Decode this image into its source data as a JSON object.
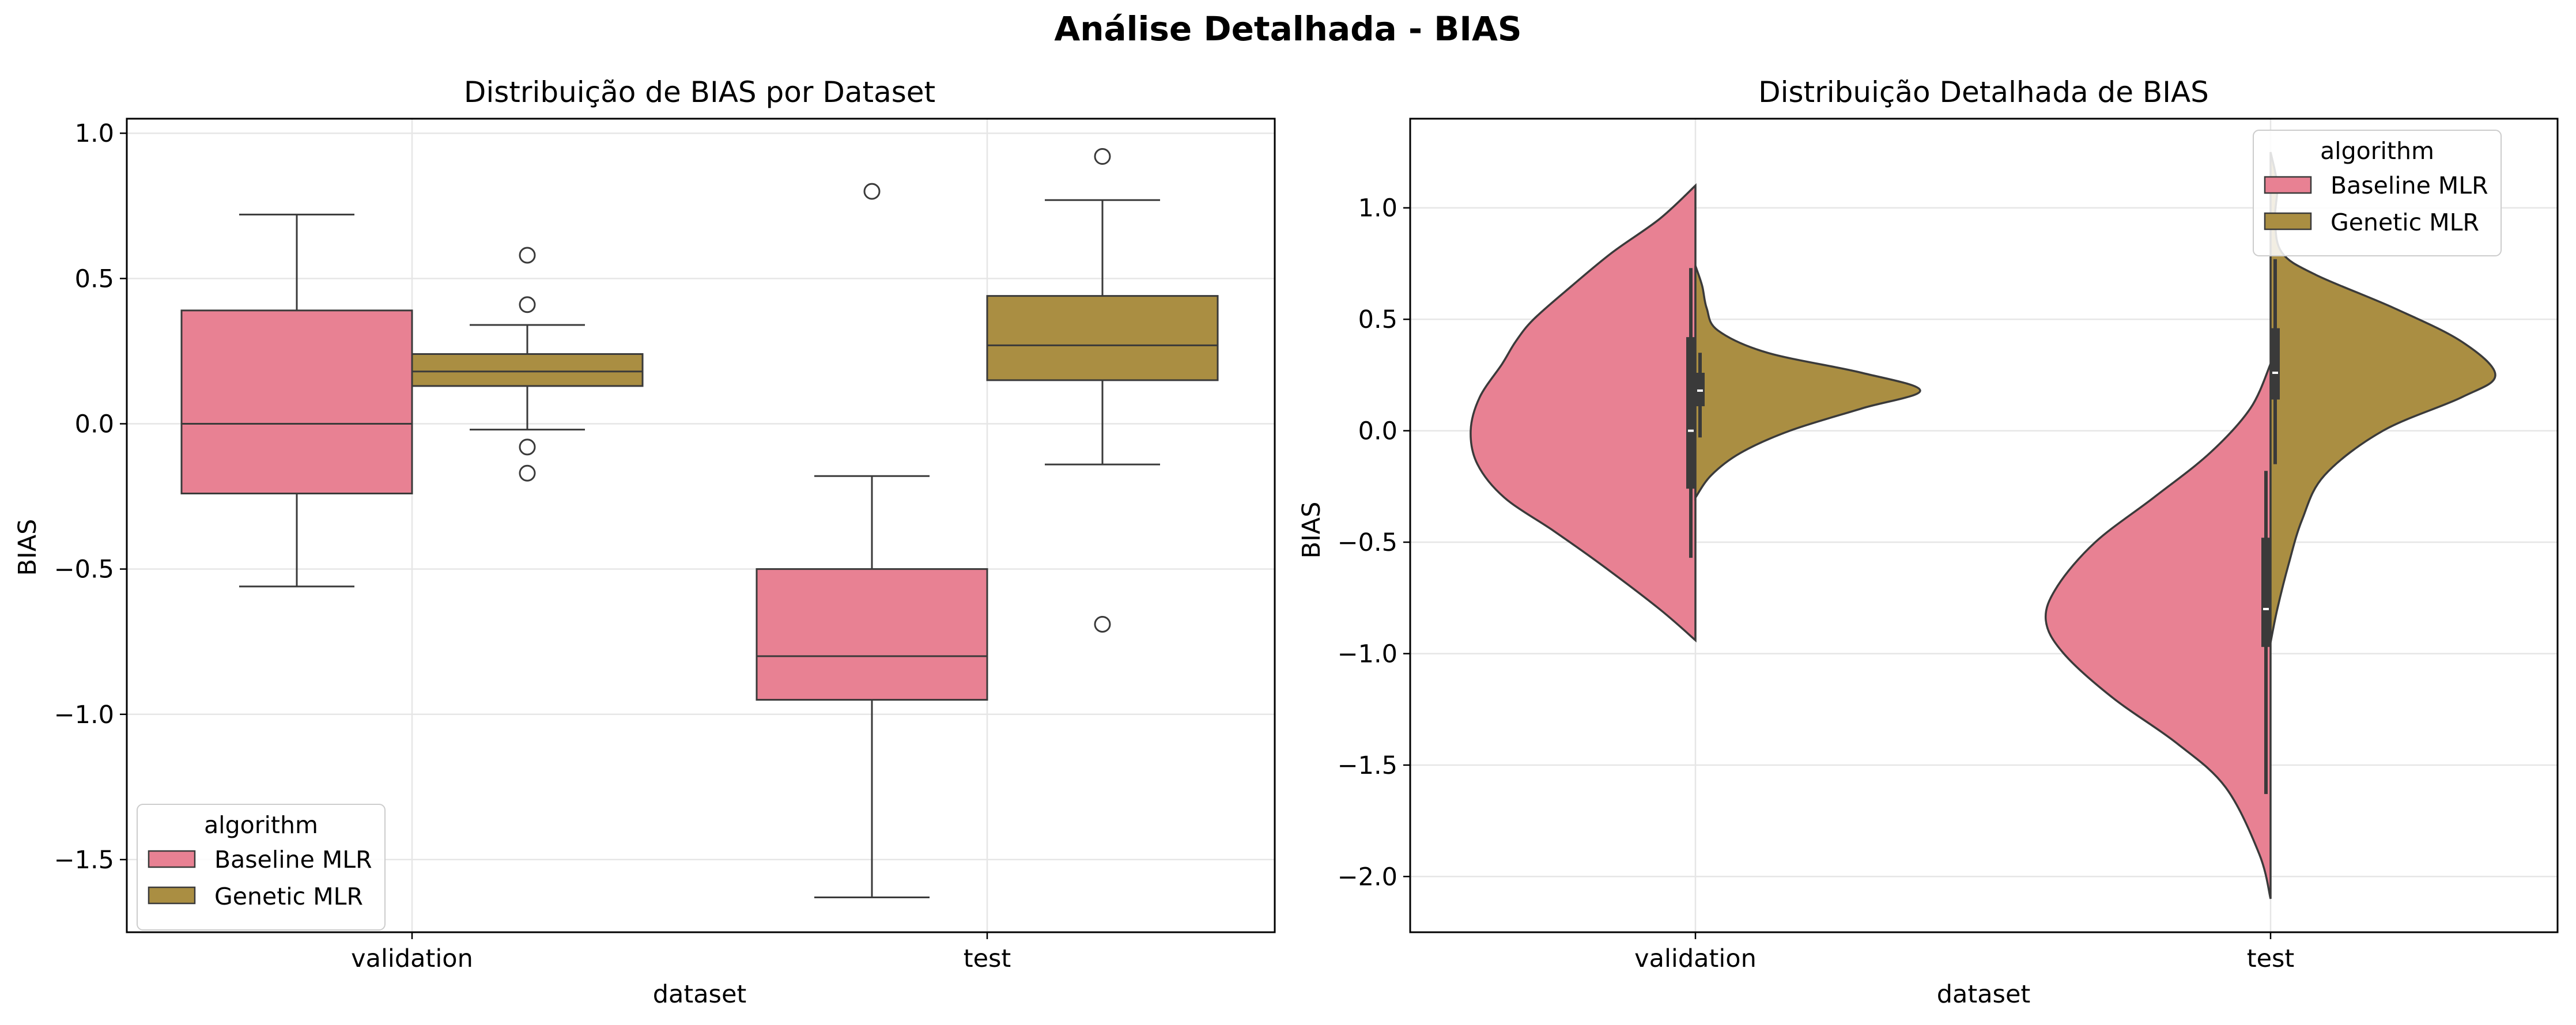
{
  "suptitle": "Análise Detalhada - BIAS",
  "colors": {
    "baseline": "#e88193",
    "genetic": "#aa8e42",
    "line": "#3a3a3a",
    "grid": "#e6e6e6"
  },
  "chart_data": [
    {
      "type": "box",
      "title": "Distribuição de BIAS por Dataset",
      "xlabel": "dataset",
      "ylabel": "BIAS",
      "categories": [
        "validation",
        "test"
      ],
      "ylim": [
        -1.75,
        1.05
      ],
      "yticks": [
        1.0,
        0.5,
        0.0,
        -0.5,
        -1.0,
        -1.5
      ],
      "yticklabels": [
        "1.0",
        "0.5",
        "0.0",
        "−0.5",
        "−1.0",
        "−1.5"
      ],
      "grid": true,
      "legend": {
        "title": "algorithm",
        "position": "lower-left",
        "entries": [
          "Baseline MLR",
          "Genetic MLR"
        ]
      },
      "series": [
        {
          "name": "Baseline MLR",
          "boxes": [
            {
              "category": "validation",
              "whislo": -0.56,
              "q1": -0.24,
              "median": 0.0,
              "q3": 0.39,
              "whishi": 0.72,
              "fliers": []
            },
            {
              "category": "test",
              "whislo": -1.63,
              "q1": -0.95,
              "median": -0.8,
              "q3": -0.5,
              "whishi": -0.18,
              "fliers": [
                0.8
              ]
            }
          ]
        },
        {
          "name": "Genetic MLR",
          "boxes": [
            {
              "category": "validation",
              "whislo": -0.02,
              "q1": 0.13,
              "median": 0.18,
              "q3": 0.24,
              "whishi": 0.34,
              "fliers": [
                0.58,
                0.41,
                -0.08,
                -0.17
              ]
            },
            {
              "category": "test",
              "whislo": -0.14,
              "q1": 0.15,
              "median": 0.27,
              "q3": 0.44,
              "whishi": 0.77,
              "fliers": [
                0.92,
                -0.69
              ]
            }
          ]
        }
      ]
    },
    {
      "type": "violin",
      "split": true,
      "title": "Distribuição Detalhada de BIAS",
      "xlabel": "dataset",
      "ylabel": "BIAS",
      "categories": [
        "validation",
        "test"
      ],
      "ylim": [
        -2.25,
        1.4
      ],
      "yticks": [
        1.0,
        0.5,
        0.0,
        -0.5,
        -1.0,
        -1.5,
        -2.0
      ],
      "yticklabels": [
        "1.0",
        "0.5",
        "0.0",
        "−0.5",
        "−1.0",
        "−1.5",
        "−2.0"
      ],
      "grid": true,
      "legend": {
        "title": "algorithm",
        "position": "top-right",
        "entries": [
          "Baseline MLR",
          "Genetic MLR"
        ]
      },
      "series": [
        {
          "name": "Baseline MLR",
          "violins": [
            {
              "category": "validation",
              "range": [
                -0.94,
                1.1
              ],
              "median": 0.0,
              "q1": -0.26,
              "q3": 0.42,
              "whislo": -0.57,
              "whishi": 0.73,
              "density": [
                [
                  -0.94,
                  0.0
                ],
                [
                  -0.8,
                  0.16
                ],
                [
                  -0.6,
                  0.42
                ],
                [
                  -0.45,
                  0.63
                ],
                [
                  -0.3,
                  0.85
                ],
                [
                  -0.15,
                  0.97
                ],
                [
                  0.0,
                  1.0
                ],
                [
                  0.15,
                  0.96
                ],
                [
                  0.3,
                  0.86
                ],
                [
                  0.4,
                  0.8
                ],
                [
                  0.5,
                  0.72
                ],
                [
                  0.65,
                  0.55
                ],
                [
                  0.8,
                  0.37
                ],
                [
                  0.95,
                  0.16
                ],
                [
                  1.1,
                  0.0
                ]
              ]
            },
            {
              "category": "test",
              "range": [
                -2.1,
                0.3
              ],
              "median": -0.8,
              "q1": -0.97,
              "q3": -0.48,
              "whislo": -1.63,
              "whishi": -0.18,
              "density": [
                [
                  -2.1,
                  0.0
                ],
                [
                  -1.9,
                  0.05
                ],
                [
                  -1.6,
                  0.2
                ],
                [
                  -1.4,
                  0.42
                ],
                [
                  -1.2,
                  0.7
                ],
                [
                  -1.0,
                  0.92
                ],
                [
                  -0.85,
                  1.0
                ],
                [
                  -0.7,
                  0.95
                ],
                [
                  -0.5,
                  0.78
                ],
                [
                  -0.3,
                  0.52
                ],
                [
                  -0.1,
                  0.27
                ],
                [
                  0.1,
                  0.09
                ],
                [
                  0.3,
                  0.0
                ]
              ]
            }
          ]
        },
        {
          "name": "Genetic MLR",
          "violins": [
            {
              "category": "validation",
              "range": [
                -0.3,
                0.74
              ],
              "median": 0.18,
              "q1": 0.11,
              "q3": 0.26,
              "whislo": -0.03,
              "whishi": 0.35,
              "density": [
                [
                  -0.3,
                  0.0
                ],
                [
                  -0.2,
                  0.07
                ],
                [
                  -0.1,
                  0.2
                ],
                [
                  0.0,
                  0.42
                ],
                [
                  0.1,
                  0.74
                ],
                [
                  0.18,
                  1.0
                ],
                [
                  0.26,
                  0.74
                ],
                [
                  0.35,
                  0.32
                ],
                [
                  0.45,
                  0.1
                ],
                [
                  0.55,
                  0.05
                ],
                [
                  0.65,
                  0.03
                ],
                [
                  0.74,
                  0.0
                ]
              ]
            },
            {
              "category": "test",
              "range": [
                -0.95,
                1.25
              ],
              "median": 0.26,
              "q1": 0.14,
              "q3": 0.46,
              "whislo": -0.15,
              "whishi": 0.77,
              "density": [
                [
                  -0.95,
                  0.0
                ],
                [
                  -0.8,
                  0.03
                ],
                [
                  -0.6,
                  0.08
                ],
                [
                  -0.4,
                  0.14
                ],
                [
                  -0.2,
                  0.24
                ],
                [
                  0.0,
                  0.5
                ],
                [
                  0.15,
                  0.85
                ],
                [
                  0.25,
                  1.0
                ],
                [
                  0.4,
                  0.85
                ],
                [
                  0.55,
                  0.55
                ],
                [
                  0.7,
                  0.2
                ],
                [
                  0.8,
                  0.05
                ],
                [
                  0.95,
                  0.02
                ],
                [
                  1.1,
                  0.03
                ],
                [
                  1.25,
                  0.0
                ]
              ]
            }
          ]
        }
      ]
    }
  ]
}
